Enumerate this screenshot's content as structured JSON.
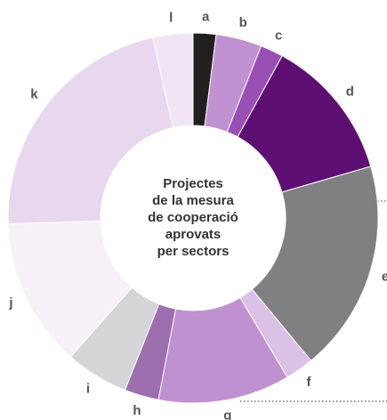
{
  "chart_data": {
    "type": "donut",
    "title_lines": [
      "Projectes",
      "de la mesura",
      "de cooperació",
      "aprovats",
      "per sectors"
    ],
    "categories": [
      "a",
      "b",
      "c",
      "d",
      "e",
      "f",
      "g",
      "h",
      "i",
      "j",
      "k",
      "l"
    ],
    "values": [
      2,
      4,
      2,
      12.5,
      18.5,
      2.5,
      11.5,
      3,
      5.5,
      13,
      22,
      3.5
    ],
    "colors": [
      "#231f20",
      "#c092d2",
      "#9a4fb4",
      "#5d0f72",
      "#808082",
      "#dcc1e7",
      "#bf91d0",
      "#9d6fae",
      "#d5d5d7",
      "#f7f0f9",
      "#e7d7ef",
      "#f0e5f4"
    ]
  }
}
